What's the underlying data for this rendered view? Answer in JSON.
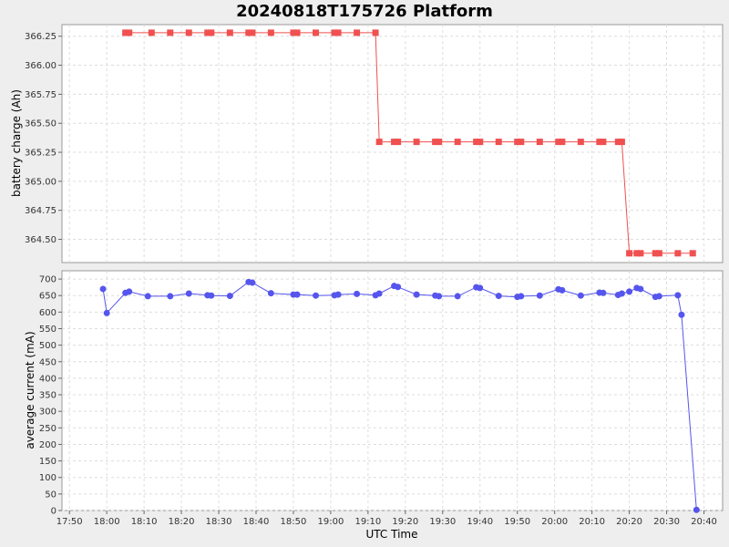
{
  "chart_data": {
    "title": "20240818T175726 Platform",
    "xlabel": "UTC Time",
    "x_ticks": [
      "17:50",
      "18:00",
      "18:10",
      "18:20",
      "18:30",
      "18:40",
      "18:50",
      "19:00",
      "19:10",
      "19:20",
      "19:30",
      "19:40",
      "19:50",
      "20:00",
      "20:10",
      "20:20",
      "20:30",
      "20:40"
    ],
    "panels": [
      {
        "type": "line",
        "ylabel": "battery charge (Ah)",
        "ylim": [
          364.3,
          366.35
        ],
        "y_ticks": [
          364.5,
          364.75,
          365.0,
          365.25,
          365.5,
          365.75,
          366.0,
          366.25
        ],
        "y_tick_labels": [
          "364.50",
          "364.75",
          "365.00",
          "365.25",
          "365.50",
          "365.75",
          "366.00",
          "366.25"
        ],
        "marker": "square",
        "color": "#f05050",
        "series": [
          {
            "x": [
              "18:05",
              "18:06",
              "18:12",
              "18:17",
              "18:22",
              "18:27",
              "18:28",
              "18:33",
              "18:38",
              "18:39",
              "18:44",
              "18:50",
              "18:51",
              "18:56",
              "19:01",
              "19:02",
              "19:07",
              "19:12",
              "19:13",
              "19:17",
              "19:18",
              "19:23",
              "19:28",
              "19:29",
              "19:34",
              "19:39",
              "19:40",
              "19:45",
              "19:50",
              "19:51",
              "19:56",
              "20:01",
              "20:02",
              "20:07",
              "20:12",
              "20:13",
              "20:17",
              "20:18",
              "20:20",
              "20:22",
              "20:23",
              "20:27",
              "20:28",
              "20:33",
              "20:37"
            ],
            "y": [
              366.28,
              366.28,
              366.28,
              366.28,
              366.28,
              366.28,
              366.28,
              366.28,
              366.28,
              366.28,
              366.28,
              366.28,
              366.28,
              366.28,
              366.28,
              366.28,
              366.28,
              366.28,
              365.34,
              365.34,
              365.34,
              365.34,
              365.34,
              365.34,
              365.34,
              365.34,
              365.34,
              365.34,
              365.34,
              365.34,
              365.34,
              365.34,
              365.34,
              365.34,
              365.34,
              365.34,
              365.34,
              365.34,
              364.38,
              364.38,
              364.38,
              364.38,
              364.38,
              364.38,
              364.38
            ]
          }
        ]
      },
      {
        "type": "line",
        "ylabel": "average current (mA)",
        "ylim": [
          0,
          725
        ],
        "y_ticks": [
          0,
          50,
          100,
          150,
          200,
          250,
          300,
          350,
          400,
          450,
          500,
          550,
          600,
          650,
          700
        ],
        "y_tick_labels": [
          "0",
          "50",
          "100",
          "150",
          "200",
          "250",
          "300",
          "350",
          "400",
          "450",
          "500",
          "550",
          "600",
          "650",
          "700"
        ],
        "marker": "circle",
        "color": "#5555ee",
        "series": [
          {
            "x": [
              "17:59",
              "18:00",
              "18:05",
              "18:06",
              "18:11",
              "18:17",
              "18:22",
              "18:27",
              "18:28",
              "18:33",
              "18:38",
              "18:39",
              "18:44",
              "18:50",
              "18:51",
              "18:56",
              "19:01",
              "19:02",
              "19:07",
              "19:12",
              "19:13",
              "19:17",
              "19:18",
              "19:23",
              "19:28",
              "19:29",
              "19:34",
              "19:39",
              "19:40",
              "19:45",
              "19:50",
              "19:51",
              "19:56",
              "20:01",
              "20:02",
              "20:07",
              "20:12",
              "20:13",
              "20:17",
              "20:18",
              "20:20",
              "20:22",
              "20:23",
              "20:27",
              "20:28",
              "20:33",
              "20:34",
              "20:38"
            ],
            "y": [
              670,
              597,
              658,
              662,
              648,
              648,
              656,
              651,
              650,
              649,
              691,
              689,
              657,
              653,
              653,
              650,
              651,
              653,
              655,
              651,
              656,
              679,
              676,
              653,
              650,
              648,
              648,
              675,
              673,
              649,
              646,
              648,
              650,
              669,
              666,
              650,
              659,
              658,
              652,
              656,
              662,
              673,
              670,
              646,
              648,
              651,
              592,
              2
            ]
          }
        ]
      }
    ]
  }
}
